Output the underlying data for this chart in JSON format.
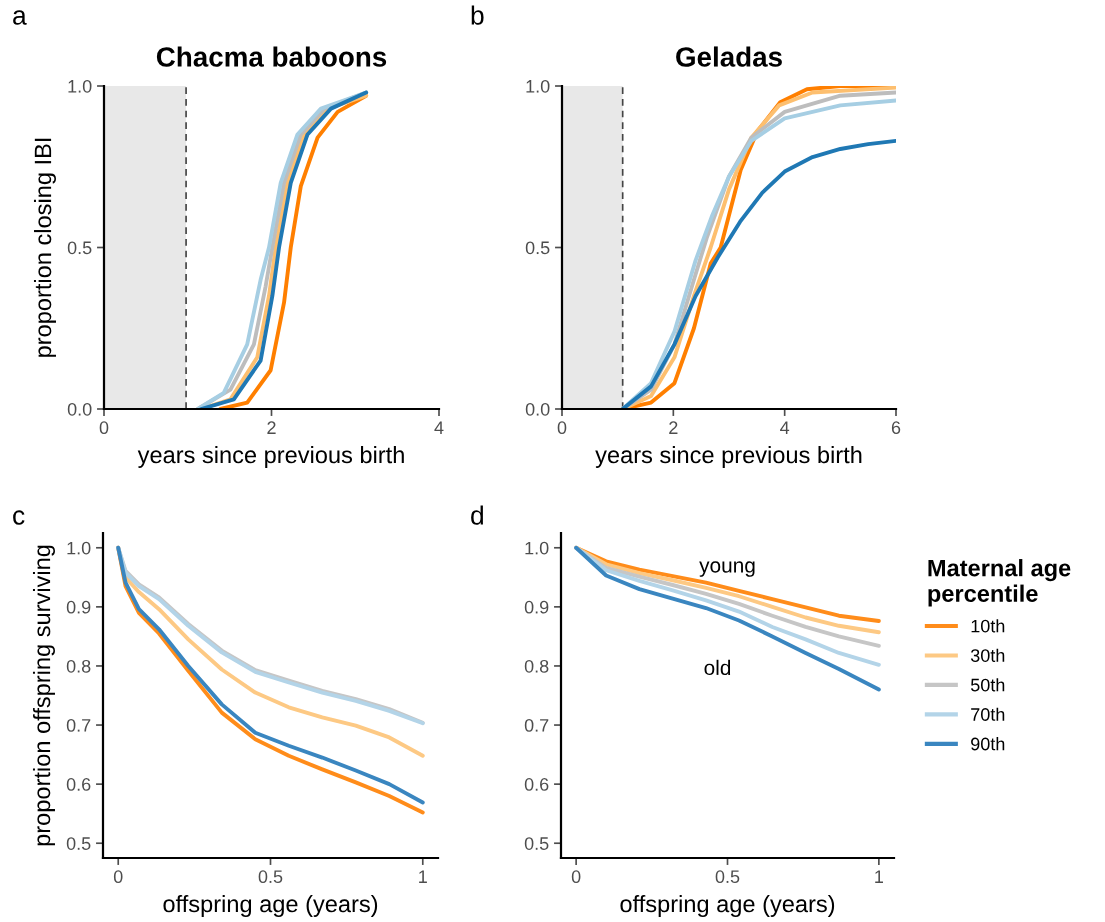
{
  "chart_data": [
    {
      "type": "line",
      "title": "Chacma baboons",
      "xlabel": "years since previous birth",
      "ylabel": "proportion closing IBI",
      "annotations": [
        "a"
      ],
      "xlim": [
        0,
        4
      ],
      "xticks": [
        0,
        2,
        4
      ],
      "ylim": [
        0,
        1
      ],
      "yticks": [
        {
          "value": 0,
          "label": "0.0"
        },
        {
          "value": 0.5,
          "label": "0.5"
        },
        {
          "value": 1,
          "label": "1.0"
        }
      ],
      "bands": [
        {
          "axis": "x",
          "from": 0,
          "to": 0.98,
          "color": "#e8e8e8"
        }
      ],
      "ref_lines": [
        {
          "axis": "x",
          "value": 0.98,
          "color": "#444444",
          "line_style": "dashed"
        }
      ],
      "grid": false,
      "legend": false,
      "series": [
        {
          "color": "#ff7f00",
          "x": [
            1.39,
            1.71,
            1.99,
            2.15,
            2.23,
            2.35,
            2.55,
            2.79,
            3.13
          ],
          "values": [
            0,
            0.02,
            0.12,
            0.33,
            0.5,
            0.69,
            0.84,
            0.92,
            0.97
          ]
        },
        {
          "color": "#fdbf6f",
          "x": [
            1.16,
            1.51,
            1.83,
            1.97,
            2.05,
            2.19,
            2.39,
            2.67,
            3.13
          ],
          "values": [
            0,
            0.03,
            0.16,
            0.35,
            0.5,
            0.7,
            0.85,
            0.93,
            0.97
          ]
        },
        {
          "color": "#bdbdbd",
          "x": [
            1.12,
            1.51,
            1.79,
            1.93,
            2.01,
            2.15,
            2.35,
            2.63,
            3.13
          ],
          "values": [
            0,
            0.06,
            0.2,
            0.38,
            0.5,
            0.7,
            0.85,
            0.93,
            0.98
          ]
        },
        {
          "color": "#a6cee3",
          "x": [
            1.12,
            1.43,
            1.71,
            1.87,
            1.97,
            2.11,
            2.31,
            2.59,
            3.13
          ],
          "values": [
            0,
            0.05,
            0.2,
            0.4,
            0.5,
            0.7,
            0.85,
            0.93,
            0.98
          ]
        },
        {
          "color": "#1f78b4",
          "x": [
            1.16,
            1.55,
            1.87,
            2.01,
            2.09,
            2.23,
            2.43,
            2.71,
            3.13
          ],
          "values": [
            0,
            0.03,
            0.15,
            0.35,
            0.5,
            0.7,
            0.85,
            0.93,
            0.98
          ]
        }
      ]
    },
    {
      "type": "line",
      "title": "Geladas",
      "xlabel": "years since previous birth",
      "annotations": [
        "b"
      ],
      "xlim": [
        0,
        6
      ],
      "xticks": [
        0,
        2,
        4,
        6
      ],
      "ylim": [
        0,
        1
      ],
      "yticks": [
        {
          "value": 0,
          "label": "0.0"
        },
        {
          "value": 0.5,
          "label": "0.5"
        },
        {
          "value": 1,
          "label": "1.0"
        }
      ],
      "bands": [
        {
          "axis": "x",
          "from": 0,
          "to": 1.09,
          "color": "#e8e8e8"
        }
      ],
      "ref_lines": [
        {
          "axis": "x",
          "value": 1.09,
          "color": "#444444",
          "line_style": "dashed"
        }
      ],
      "grid": false,
      "legend": false,
      "series": [
        {
          "color": "#ff7f00",
          "x": [
            1.09,
            1.6,
            2.02,
            2.37,
            2.67,
            2.85,
            3.21,
            3.51,
            3.92,
            4.4,
            5.0,
            6.0
          ],
          "values": [
            0,
            0.02,
            0.08,
            0.25,
            0.45,
            0.5,
            0.74,
            0.86,
            0.95,
            0.99,
            1.0,
            1.0
          ]
        },
        {
          "color": "#fdbf6f",
          "x": [
            1.09,
            1.6,
            2.02,
            2.37,
            2.67,
            3.0,
            3.4,
            3.9,
            4.5,
            6.0
          ],
          "values": [
            0,
            0.04,
            0.16,
            0.35,
            0.5,
            0.68,
            0.84,
            0.94,
            0.98,
            0.995
          ]
        },
        {
          "color": "#bdbdbd",
          "x": [
            1.09,
            1.6,
            2.02,
            2.37,
            2.6,
            3.0,
            3.4,
            4.0,
            5.0,
            6.0
          ],
          "values": [
            0,
            0.06,
            0.2,
            0.4,
            0.53,
            0.72,
            0.84,
            0.92,
            0.97,
            0.98
          ]
        },
        {
          "color": "#a6cee3",
          "x": [
            1.09,
            1.6,
            2.02,
            2.4,
            2.7,
            3.0,
            3.4,
            4.0,
            5.0,
            6.0
          ],
          "values": [
            0,
            0.08,
            0.24,
            0.46,
            0.6,
            0.72,
            0.83,
            0.9,
            0.94,
            0.955
          ]
        },
        {
          "color": "#1f78b4",
          "x": [
            1.09,
            1.6,
            2.02,
            2.4,
            2.8,
            3.2,
            3.6,
            4.0,
            4.5,
            5.0,
            5.5,
            6.0
          ],
          "values": [
            0,
            0.07,
            0.2,
            0.35,
            0.47,
            0.58,
            0.67,
            0.735,
            0.78,
            0.805,
            0.82,
            0.83
          ]
        }
      ]
    },
    {
      "type": "line",
      "xlabel": "offspring age (years)",
      "ylabel": "proportion offspring surviving",
      "annotations": [
        "c"
      ],
      "xlim": [
        -0.05,
        1.05
      ],
      "xticks": [
        0,
        0.5,
        1
      ],
      "ylim": [
        0.475,
        1.025
      ],
      "yticks": [
        {
          "value": 0.5,
          "label": "0.5"
        },
        {
          "value": 0.6,
          "label": "0.6"
        },
        {
          "value": 0.7,
          "label": "0.7"
        },
        {
          "value": 0.8,
          "label": "0.8"
        },
        {
          "value": 0.9,
          "label": "0.9"
        },
        {
          "value": 1,
          "label": "1.0"
        }
      ],
      "grid": false,
      "legend": false,
      "series": [
        {
          "color": "#ff8c1a",
          "x": [
            0,
            0.024,
            0.068,
            0.134,
            0.23,
            0.34,
            0.45,
            0.56,
            0.67,
            0.78,
            0.89,
            1
          ],
          "values": [
            1,
            0.935,
            0.89,
            0.855,
            0.792,
            0.721,
            0.676,
            0.648,
            0.625,
            0.603,
            0.58,
            0.552
          ]
        },
        {
          "color": "#fdc984",
          "x": [
            0,
            0.024,
            0.068,
            0.134,
            0.23,
            0.34,
            0.45,
            0.56,
            0.67,
            0.78,
            0.89,
            1
          ],
          "values": [
            1,
            0.95,
            0.925,
            0.896,
            0.845,
            0.794,
            0.755,
            0.73,
            0.713,
            0.699,
            0.679,
            0.648
          ]
        },
        {
          "color": "#c6c6c6",
          "x": [
            0,
            0.024,
            0.068,
            0.134,
            0.23,
            0.34,
            0.45,
            0.56,
            0.67,
            0.78,
            0.89,
            1
          ],
          "values": [
            1,
            0.961,
            0.938,
            0.916,
            0.871,
            0.826,
            0.793,
            0.775,
            0.758,
            0.744,
            0.727,
            0.704
          ]
        },
        {
          "color": "#b3d4e8",
          "x": [
            0,
            0.024,
            0.068,
            0.134,
            0.23,
            0.34,
            0.45,
            0.56,
            0.67,
            0.78,
            0.89,
            1
          ],
          "values": [
            1,
            0.958,
            0.935,
            0.913,
            0.868,
            0.823,
            0.79,
            0.772,
            0.755,
            0.741,
            0.724,
            0.703
          ]
        },
        {
          "color": "#3a86c0",
          "x": [
            0,
            0.024,
            0.068,
            0.134,
            0.23,
            0.34,
            0.45,
            0.56,
            0.67,
            0.78,
            0.89,
            1
          ],
          "values": [
            1,
            0.941,
            0.896,
            0.862,
            0.8,
            0.735,
            0.687,
            0.665,
            0.645,
            0.623,
            0.6,
            0.569
          ]
        }
      ]
    },
    {
      "type": "line",
      "xlabel": "offspring age (years)",
      "legend_title": "Maternal age percentile",
      "annotations": [
        "d",
        "young",
        "old"
      ],
      "xlim": [
        -0.05,
        1.05
      ],
      "xticks": [
        0,
        0.5,
        1
      ],
      "ylim": [
        0.475,
        1.025
      ],
      "yticks": [
        {
          "value": 0.5,
          "label": "0.5"
        },
        {
          "value": 0.6,
          "label": "0.6"
        },
        {
          "value": 0.7,
          "label": "0.7"
        },
        {
          "value": 0.8,
          "label": "0.8"
        },
        {
          "value": 0.9,
          "label": "0.9"
        },
        {
          "value": 1,
          "label": "1.0"
        }
      ],
      "grid": false,
      "legend": "right",
      "series": [
        {
          "name": "10th",
          "color": "#ff8c1a",
          "x": [
            0,
            0.099,
            0.209,
            0.319,
            0.429,
            0.538,
            0.648,
            0.758,
            0.868,
            1
          ],
          "values": [
            1,
            0.977,
            0.963,
            0.952,
            0.941,
            0.927,
            0.913,
            0.899,
            0.885,
            0.876
          ]
        },
        {
          "name": "30th",
          "color": "#fdc984",
          "x": [
            0,
            0.099,
            0.209,
            0.319,
            0.429,
            0.538,
            0.648,
            0.758,
            0.868,
            1
          ],
          "values": [
            1,
            0.972,
            0.957,
            0.945,
            0.932,
            0.918,
            0.9,
            0.882,
            0.868,
            0.857
          ]
        },
        {
          "name": "50th",
          "color": "#c6c6c6",
          "x": [
            0,
            0.099,
            0.209,
            0.319,
            0.429,
            0.538,
            0.648,
            0.758,
            0.868,
            1
          ],
          "values": [
            1,
            0.966,
            0.951,
            0.937,
            0.922,
            0.905,
            0.885,
            0.866,
            0.85,
            0.834
          ]
        },
        {
          "name": "70th",
          "color": "#b3d4e8",
          "x": [
            0,
            0.099,
            0.209,
            0.319,
            0.429,
            0.538,
            0.648,
            0.758,
            0.868,
            1
          ],
          "values": [
            1,
            0.962,
            0.944,
            0.928,
            0.911,
            0.892,
            0.866,
            0.845,
            0.822,
            0.802
          ]
        },
        {
          "name": "90th",
          "color": "#3a86c0",
          "x": [
            0,
            0.099,
            0.209,
            0.319,
            0.429,
            0.538,
            0.648,
            0.758,
            0.868,
            1
          ],
          "values": [
            1,
            0.953,
            0.93,
            0.914,
            0.898,
            0.877,
            0.85,
            0.822,
            0.795,
            0.76
          ]
        }
      ]
    }
  ]
}
